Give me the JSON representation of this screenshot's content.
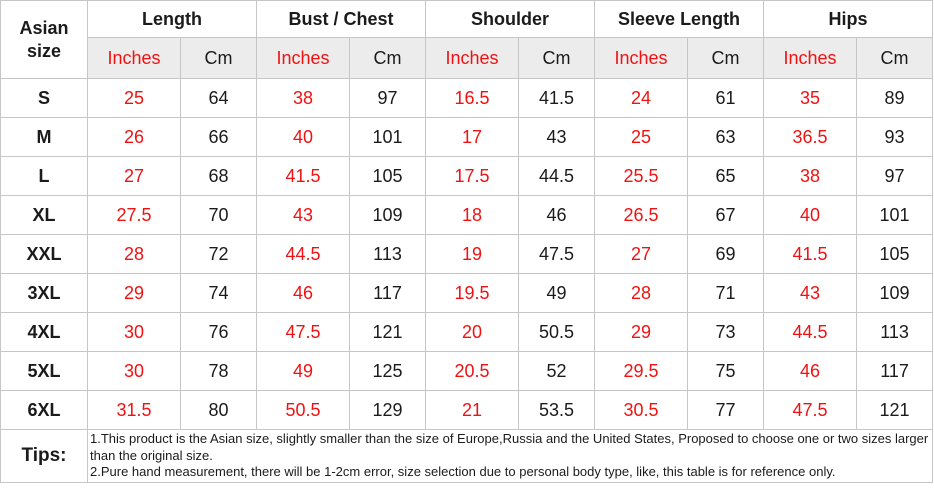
{
  "table": {
    "corner_header": "Asian size",
    "groups": [
      {
        "label": "Length"
      },
      {
        "label": "Bust / Chest"
      },
      {
        "label": "Shoulder"
      },
      {
        "label": "Sleeve Length"
      },
      {
        "label": "Hips"
      }
    ],
    "units": {
      "inches": "Inches",
      "cm": "Cm"
    },
    "rows": [
      {
        "size": "S",
        "values": [
          "25",
          "64",
          "38",
          "97",
          "16.5",
          "41.5",
          "24",
          "61",
          "35",
          "89"
        ]
      },
      {
        "size": "M",
        "values": [
          "26",
          "66",
          "40",
          "101",
          "17",
          "43",
          "25",
          "63",
          "36.5",
          "93"
        ]
      },
      {
        "size": "L",
        "values": [
          "27",
          "68",
          "41.5",
          "105",
          "17.5",
          "44.5",
          "25.5",
          "65",
          "38",
          "97"
        ]
      },
      {
        "size": "XL",
        "values": [
          "27.5",
          "70",
          "43",
          "109",
          "18",
          "46",
          "26.5",
          "67",
          "40",
          "101"
        ]
      },
      {
        "size": "XXL",
        "values": [
          "28",
          "72",
          "44.5",
          "113",
          "19",
          "47.5",
          "27",
          "69",
          "41.5",
          "105"
        ]
      },
      {
        "size": "3XL",
        "values": [
          "29",
          "74",
          "46",
          "117",
          "19.5",
          "49",
          "28",
          "71",
          "43",
          "109"
        ]
      },
      {
        "size": "4XL",
        "values": [
          "30",
          "76",
          "47.5",
          "121",
          "20",
          "50.5",
          "29",
          "73",
          "44.5",
          "113"
        ]
      },
      {
        "size": "5XL",
        "values": [
          "30",
          "78",
          "49",
          "125",
          "20.5",
          "52",
          "29.5",
          "75",
          "46",
          "117"
        ]
      },
      {
        "size": "6XL",
        "values": [
          "31.5",
          "80",
          "50.5",
          "129",
          "21",
          "53.5",
          "30.5",
          "77",
          "47.5",
          "121"
        ]
      }
    ],
    "tips": {
      "label": "Tips:",
      "lines": [
        "1.This product is the Asian size, slightly smaller than the size of Europe,Russia and the United States, Proposed to choose one or two sizes larger than the original size.",
        "2.Pure hand measurement, there will be 1-2cm error, size selection due to personal body type, like, this table is for reference only."
      ]
    },
    "colors": {
      "accent_red": "#f01212",
      "unit_row_bg": "#ececec",
      "border": "#c6c6c6",
      "text": "#1b1b1b"
    }
  }
}
